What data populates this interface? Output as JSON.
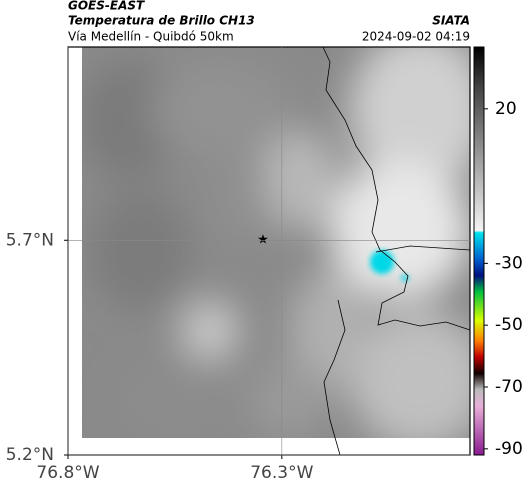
{
  "header": {
    "title": "GOES-EAST",
    "subtitle": "Temperatura de Brillo CH13",
    "location": "Vía Medellín - Quibdó 50km",
    "source": "SIATA",
    "datetime": "2024-09-02 04:19"
  },
  "map": {
    "xlim": [
      -76.8,
      -75.86
    ],
    "ylim": [
      5.2,
      6.15
    ],
    "xticks": [
      {
        "value": -76.8,
        "label": "76.8°W"
      },
      {
        "value": -76.3,
        "label": "76.3°W"
      }
    ],
    "yticks": [
      {
        "value": 5.2,
        "label": "5.2°N"
      },
      {
        "value": 5.7,
        "label": "5.7°N"
      }
    ]
  },
  "colorbar": {
    "lim": [
      -92,
      40
    ],
    "ticks": [
      20,
      -30,
      -50,
      -70,
      -90
    ]
  }
}
